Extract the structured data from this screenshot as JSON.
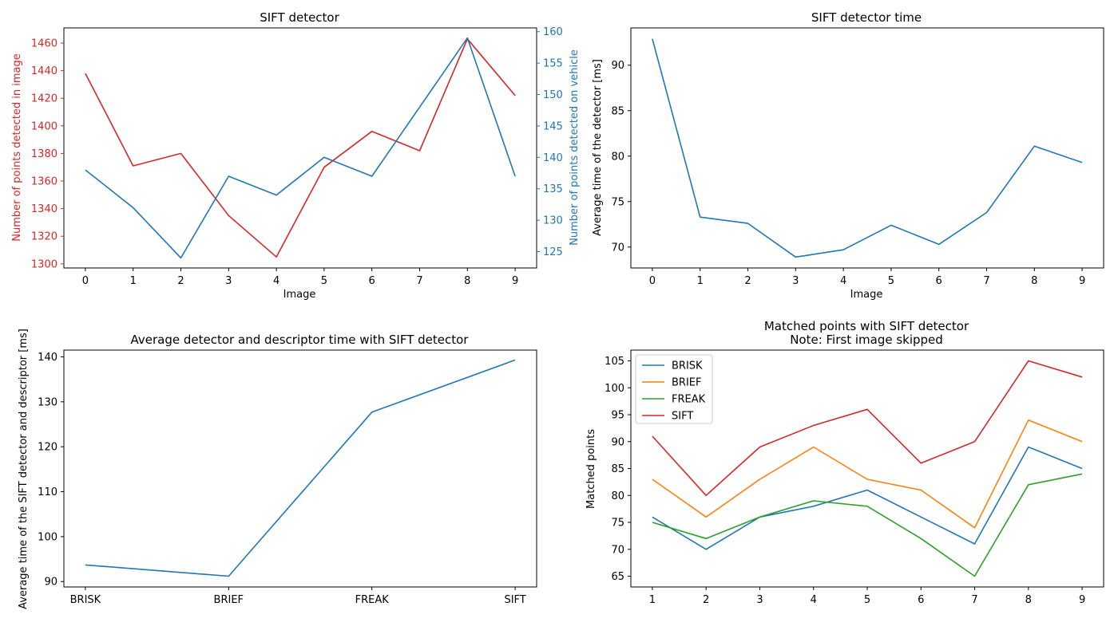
{
  "colors": {
    "blue": "#1f77b4",
    "orange": "#ff7f0e",
    "green": "#2ca02c",
    "red": "#d62728",
    "axis": "#000000"
  },
  "chart_data": [
    {
      "type": "line",
      "title": "SIFT detector",
      "xlabel": "Image",
      "ylabel": "Number of points detected in image",
      "ylabel_right": "Number of points detected on vehicle",
      "x": [
        0,
        1,
        2,
        3,
        4,
        5,
        6,
        7,
        8,
        9
      ],
      "xticks": [
        "0",
        "1",
        "2",
        "3",
        "4",
        "5",
        "6",
        "7",
        "8",
        "9"
      ],
      "series": [
        {
          "axis": "left",
          "color": "#d62728",
          "values": [
            1438,
            1371,
            1380,
            1335,
            1305,
            1370,
            1396,
            1382,
            1463,
            1422
          ]
        },
        {
          "axis": "right",
          "color": "#1f77b4",
          "values": [
            138,
            132,
            124,
            137,
            134,
            140,
            137,
            148,
            159,
            137
          ]
        }
      ],
      "ylim": [
        1297,
        1471
      ],
      "ylim_right": [
        122.4,
        160.6
      ],
      "yticks": [
        "1300",
        "1320",
        "1340",
        "1360",
        "1380",
        "1400",
        "1420",
        "1440",
        "1460"
      ],
      "yticks_right": [
        "125",
        "130",
        "135",
        "140",
        "145",
        "150",
        "155",
        "160"
      ],
      "grid": false
    },
    {
      "type": "line",
      "title": "SIFT detector time",
      "xlabel": "Image",
      "ylabel": "Average time of the detector [ms]",
      "x": [
        0,
        1,
        2,
        3,
        4,
        5,
        6,
        7,
        8,
        9
      ],
      "xticks": [
        "0",
        "1",
        "2",
        "3",
        "4",
        "5",
        "6",
        "7",
        "8",
        "9"
      ],
      "series": [
        {
          "color": "#1f77b4",
          "values": [
            92.9,
            73.3,
            72.6,
            68.9,
            69.7,
            72.4,
            70.3,
            73.8,
            81.1,
            79.3
          ]
        }
      ],
      "ylim": [
        67.7,
        94.1
      ],
      "yticks": [
        "70",
        "75",
        "80",
        "85",
        "90"
      ],
      "grid": false
    },
    {
      "type": "line",
      "title": "Average detector and descriptor time with SIFT detector",
      "xlabel": "",
      "ylabel": "Average time of the SIFT detector and descriptor [ms]",
      "categories": [
        "BRISK",
        "BRIEF",
        "FREAK",
        "SIFT"
      ],
      "series": [
        {
          "color": "#1f77b4",
          "values": [
            93.7,
            91.2,
            127.7,
            139.3
          ]
        }
      ],
      "ylim": [
        88.8,
        141.5
      ],
      "yticks": [
        "90",
        "100",
        "110",
        "120",
        "130",
        "140"
      ],
      "grid": false
    },
    {
      "type": "line",
      "title": "Matched points with SIFT detector",
      "subtitle": "Note: First image skipped",
      "xlabel": "",
      "ylabel": "Matched points",
      "x": [
        1,
        2,
        3,
        4,
        5,
        6,
        7,
        8,
        9
      ],
      "xticks": [
        "1",
        "2",
        "3",
        "4",
        "5",
        "6",
        "7",
        "8",
        "9"
      ],
      "series": [
        {
          "name": "BRISK",
          "color": "#1f77b4",
          "values": [
            76,
            70,
            76,
            78,
            81,
            76,
            71,
            89,
            85
          ]
        },
        {
          "name": "BRIEF",
          "color": "#ff7f0e",
          "values": [
            83,
            76,
            83,
            89,
            83,
            81,
            74,
            94,
            90
          ]
        },
        {
          "name": "FREAK",
          "color": "#2ca02c",
          "values": [
            75,
            72,
            76,
            79,
            78,
            72,
            65,
            82,
            84
          ]
        },
        {
          "name": "SIFT",
          "color": "#d62728",
          "values": [
            91,
            80,
            89,
            93,
            96,
            86,
            90,
            105,
            102
          ]
        }
      ],
      "ylim": [
        63,
        107
      ],
      "yticks": [
        "65",
        "70",
        "75",
        "80",
        "85",
        "90",
        "95",
        "100",
        "105"
      ],
      "legend": "top-left",
      "grid": false
    }
  ]
}
